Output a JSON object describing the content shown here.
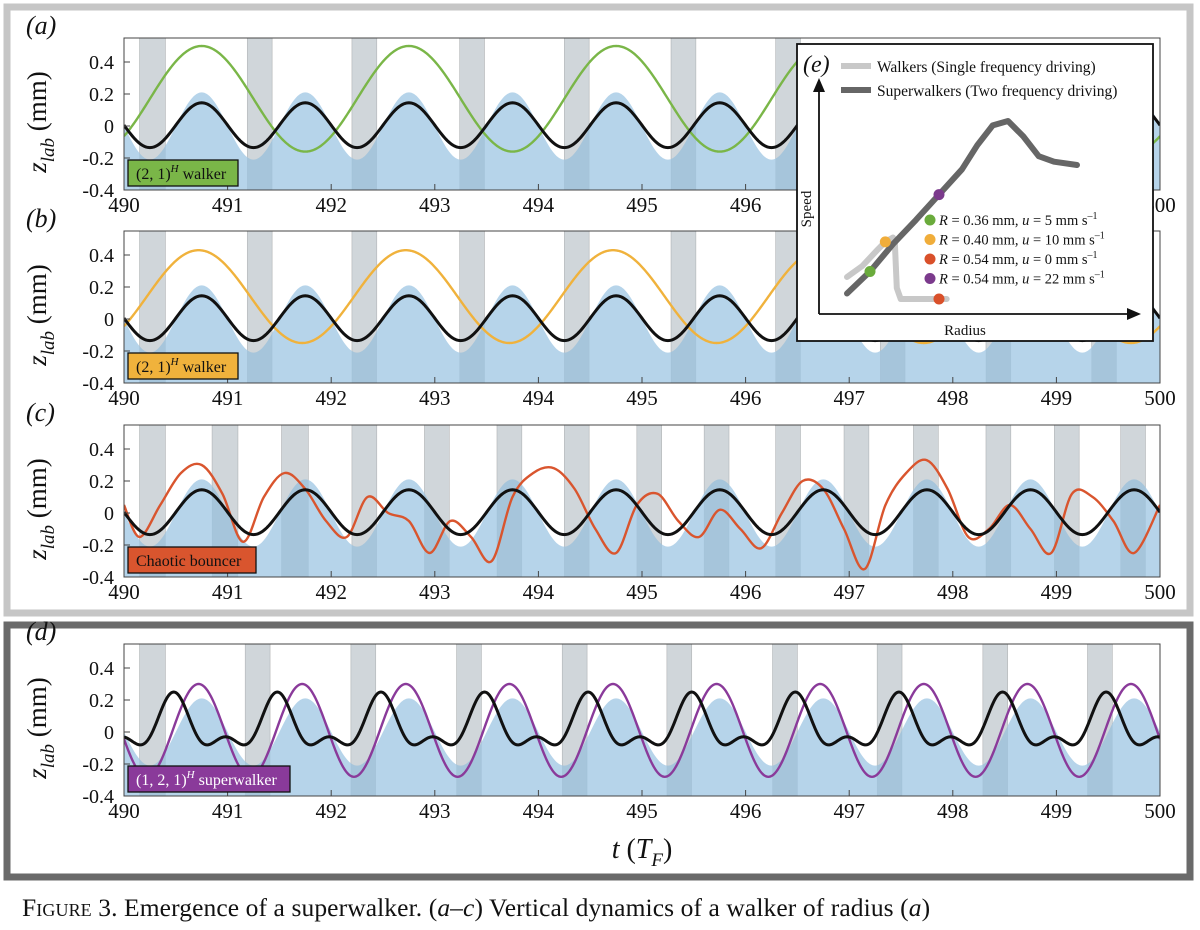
{
  "chart_data": [
    {
      "type": "line",
      "panel_label": "(a)",
      "ylabel_main": "z",
      "ylabel_sub": "lab",
      "ylabel_unit": " (mm)",
      "xlim": [
        490,
        500
      ],
      "ylim": [
        -0.4,
        0.55
      ],
      "xticks": [
        "490",
        "491",
        "492",
        "493",
        "494",
        "495",
        "496",
        "497",
        "498",
        "499",
        "500"
      ],
      "yticks": [
        "0.4",
        "0.2",
        "0",
        "-0.2",
        "-0.4"
      ],
      "legend_text": "(2, 1)",
      "legend_sup": "H",
      "legend_suffix": " walker",
      "series": [
        {
          "color": "#7ab648",
          "period": 2,
          "amplitude": 0.33,
          "offset": 0.17,
          "phase_peak": 0.75
        },
        {
          "color": "#111111",
          "period": 1,
          "amplitude": 0.14,
          "offset": 0.005,
          "phase_peak": 0.75
        },
        {
          "color": "#a9cce6",
          "kind": "bath_fill",
          "period": 1,
          "amplitude": 0.21,
          "offset": 0.0,
          "phase_peak": 0.75
        }
      ],
      "shaded_intervals": [
        [
          490.15,
          490.4
        ],
        [
          491.19,
          491.43
        ],
        [
          492.2,
          492.44
        ],
        [
          493.24,
          493.48
        ],
        [
          494.25,
          494.49
        ],
        [
          495.28,
          495.52
        ],
        [
          496.29,
          496.53
        ]
      ]
    },
    {
      "type": "line",
      "panel_label": "(b)",
      "ylabel_main": "z",
      "ylabel_sub": "lab",
      "ylabel_unit": " (mm)",
      "xlim": [
        490,
        500
      ],
      "ylim": [
        -0.4,
        0.55
      ],
      "xticks": [
        "490",
        "491",
        "492",
        "493",
        "494",
        "495",
        "496",
        "497",
        "498",
        "499",
        "500"
      ],
      "yticks": [
        "0.4",
        "0.2",
        "0",
        "-0.2",
        "-0.4"
      ],
      "legend_text": "(2, 1)",
      "legend_sup": "H",
      "legend_suffix": " walker",
      "series": [
        {
          "color": "#f0b23c",
          "period": 2,
          "amplitude": 0.29,
          "offset": 0.14,
          "phase_peak": 0.72
        },
        {
          "color": "#111111",
          "period": 1,
          "amplitude": 0.14,
          "offset": 0.005,
          "phase_peak": 0.75
        },
        {
          "color": "#a9cce6",
          "kind": "bath_fill",
          "period": 1,
          "amplitude": 0.21,
          "offset": 0.0,
          "phase_peak": 0.75
        }
      ],
      "shaded_intervals": [
        [
          490.15,
          490.4
        ],
        [
          491.19,
          491.43
        ],
        [
          492.2,
          492.44
        ],
        [
          493.24,
          493.48
        ],
        [
          494.25,
          494.49
        ],
        [
          495.28,
          495.52
        ],
        [
          496.29,
          496.53
        ],
        [
          497.3,
          497.54
        ],
        [
          498.32,
          498.56
        ],
        [
          499.34,
          499.58
        ]
      ]
    },
    {
      "type": "line",
      "panel_label": "(c)",
      "ylabel_main": "z",
      "ylabel_sub": "lab",
      "ylabel_unit": " (mm)",
      "xlim": [
        490,
        500
      ],
      "ylim": [
        -0.4,
        0.55
      ],
      "xticks": [
        "490",
        "491",
        "492",
        "493",
        "494",
        "495",
        "496",
        "497",
        "498",
        "499",
        "500"
      ],
      "yticks": [
        "0.4",
        "0.2",
        "0",
        "-0.2",
        "-0.4"
      ],
      "legend_text": "Chaotic bouncer",
      "legend_sup": "",
      "legend_suffix": "",
      "series": [
        {
          "color": "#d9552e",
          "kind": "chaotic",
          "x": [
            490.0,
            490.15,
            490.35,
            490.55,
            490.75,
            490.95,
            491.15,
            491.35,
            491.55,
            491.75,
            491.95,
            492.15,
            492.35,
            492.55,
            492.75,
            492.95,
            493.15,
            493.35,
            493.55,
            493.75,
            493.95,
            494.15,
            494.35,
            494.55,
            494.75,
            494.95,
            495.15,
            495.35,
            495.55,
            495.75,
            495.95,
            496.15,
            496.35,
            496.55,
            496.75,
            496.95,
            497.15,
            497.35,
            497.55,
            497.75,
            497.95,
            498.15,
            498.35,
            498.55,
            498.75,
            498.95,
            499.15,
            499.35,
            499.55,
            499.75,
            500.0
          ],
          "y": [
            0.05,
            -0.15,
            0.05,
            0.25,
            0.3,
            0.12,
            -0.18,
            0.1,
            0.25,
            0.15,
            -0.05,
            -0.15,
            0.1,
            0.0,
            -0.05,
            -0.25,
            -0.05,
            -0.15,
            -0.3,
            0.1,
            0.25,
            0.28,
            0.15,
            -0.1,
            -0.25,
            0.05,
            0.12,
            -0.05,
            -0.15,
            0.02,
            -0.1,
            -0.22,
            0.0,
            0.2,
            0.15,
            -0.1,
            -0.35,
            0.05,
            0.25,
            0.33,
            0.15,
            -0.15,
            -0.1,
            0.05,
            -0.1,
            -0.25,
            0.12,
            0.1,
            -0.05,
            -0.25,
            0.05
          ]
        },
        {
          "color": "#111111",
          "period": 1,
          "amplitude": 0.14,
          "offset": 0.005,
          "phase_peak": 0.75
        },
        {
          "color": "#a9cce6",
          "kind": "bath_fill",
          "period": 1,
          "amplitude": 0.21,
          "offset": 0.0,
          "phase_peak": 0.75
        }
      ],
      "shaded_intervals": [
        [
          490.15,
          490.4
        ],
        [
          490.85,
          491.1
        ],
        [
          491.52,
          491.78
        ],
        [
          492.2,
          492.44
        ],
        [
          492.9,
          493.14
        ],
        [
          493.6,
          493.84
        ],
        [
          494.25,
          494.49
        ],
        [
          494.95,
          495.19
        ],
        [
          495.6,
          495.84
        ],
        [
          496.29,
          496.53
        ],
        [
          496.95,
          497.19
        ],
        [
          497.62,
          497.86
        ],
        [
          498.32,
          498.56
        ],
        [
          498.98,
          499.22
        ],
        [
          499.62,
          499.86
        ]
      ]
    },
    {
      "type": "line",
      "panel_label": "(d)",
      "ylabel_main": "z",
      "ylabel_sub": "lab",
      "ylabel_unit": " (mm)",
      "xlabel_main": "t",
      "xlabel_paren_open": " (",
      "xlabel_T": "T",
      "xlabel_sub": "F",
      "xlabel_paren_close": ")",
      "xlim": [
        490,
        500
      ],
      "ylim": [
        -0.4,
        0.55
      ],
      "xticks": [
        "490",
        "491",
        "492",
        "493",
        "494",
        "495",
        "496",
        "497",
        "498",
        "499",
        "500"
      ],
      "yticks": [
        "0.4",
        "0.2",
        "0",
        "-0.2",
        "-0.4"
      ],
      "legend_text": "(1, 2, 1)",
      "legend_sup": "H",
      "legend_suffix": " superwalker",
      "series": [
        {
          "color": "#8a3a9a",
          "period": 1,
          "amplitude": 0.29,
          "offset": 0.01,
          "phase_peak": 0.72
        },
        {
          "color": "#111111",
          "kind": "two_freq",
          "amplitude": 0.14,
          "amplitude2": 0.08
        },
        {
          "color": "#a9cce6",
          "kind": "bath_fill",
          "period": 1,
          "amplitude": 0.21,
          "offset": 0.0,
          "phase_peak": 0.75
        }
      ],
      "shaded_intervals": [
        [
          490.15,
          490.4
        ],
        [
          491.17,
          491.41
        ],
        [
          492.19,
          492.43
        ],
        [
          493.21,
          493.45
        ],
        [
          494.23,
          494.47
        ],
        [
          495.24,
          495.48
        ],
        [
          496.26,
          496.5
        ],
        [
          497.27,
          497.51
        ],
        [
          498.29,
          498.53
        ],
        [
          499.3,
          499.54
        ]
      ]
    },
    {
      "type": "line",
      "panel_label": "(e)",
      "xlabel": "Radius",
      "ylabel": "Speed",
      "legend": [
        {
          "name": "Walkers (Single frequency driving)",
          "color": "#c8c8c8"
        },
        {
          "name": "Superwalkers (Two frequency driving)",
          "color": "#666666"
        }
      ],
      "series": [
        {
          "name": "Walkers (Single frequency driving)",
          "color": "#c8c8c8",
          "x": [
            0.3,
            0.34,
            0.38,
            0.4,
            0.42,
            0.425,
            0.43,
            0.44,
            0.48,
            0.52,
            0.56
          ],
          "y": [
            0.2,
            0.3,
            0.45,
            0.52,
            0.56,
            0.5,
            0.1,
            0.0,
            0.0,
            0.0,
            0.0
          ]
        },
        {
          "name": "Superwalkers (Two frequency driving)",
          "color": "#666666",
          "x": [
            0.3,
            0.36,
            0.42,
            0.48,
            0.54,
            0.6,
            0.64,
            0.68,
            0.72,
            0.76,
            0.8,
            0.84,
            0.9
          ],
          "y": [
            0.05,
            0.25,
            0.5,
            0.72,
            0.95,
            1.18,
            1.4,
            1.58,
            1.62,
            1.48,
            1.3,
            1.25,
            1.22
          ]
        }
      ],
      "points": [
        {
          "R_text": "R",
          "rest": " = 0.36 mm, ",
          "u_text": "u",
          "val": " = 5 mm s",
          "sup": "–1",
          "color": "#6aab3c",
          "x": 0.36,
          "y": 0.25
        },
        {
          "R_text": "R",
          "rest": " = 0.40 mm, ",
          "u_text": "u",
          "val": " = 10 mm s",
          "sup": "–1",
          "color": "#f0ad3a",
          "x": 0.4,
          "y": 0.52
        },
        {
          "R_text": "R",
          "rest": " = 0.54 mm, ",
          "u_text": "u",
          "val": " = 0 mm s",
          "sup": "–1",
          "color": "#d9502a",
          "x": 0.54,
          "y": 0.0
        },
        {
          "R_text": "R",
          "rest": " = 0.54 mm, ",
          "u_text": "u",
          "val": " = 22 mm s",
          "sup": "–1",
          "color": "#7b3a8c",
          "x": 0.54,
          "y": 0.95
        }
      ]
    }
  ],
  "caption": {
    "fig": "Figure",
    "rest": " 3. Emergence of a superwalker. (",
    "ac": "a–c",
    "rest2": ") Vertical dynamics of a walker of radius (",
    "a": "a",
    "rest3": ")"
  },
  "colors": {
    "bath": "#a9cce6",
    "shade": "#e6e6e6",
    "frame_light": "#c6c6c6",
    "frame_dark": "#6a6a6a"
  }
}
